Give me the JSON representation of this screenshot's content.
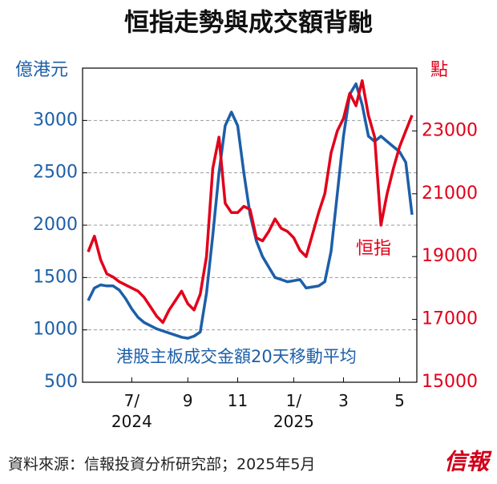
{
  "chart_data": {
    "type": "line",
    "title": "恒指走勢與成交額背馳",
    "y_label": "億港元",
    "y2_label": "點",
    "source": "資料來源：信報投資分析研究部；2025年5月",
    "logo": "信報",
    "categories": [
      null,
      null,
      null,
      null,
      null,
      null,
      null,
      "7/\n2024",
      null,
      null,
      null,
      null,
      null,
      null,
      null,
      null,
      "9",
      null,
      null,
      null,
      null,
      null,
      null,
      null,
      "11",
      null,
      null,
      null,
      null,
      null,
      null,
      null,
      null,
      "1/\n2025",
      null,
      null,
      null,
      null,
      null,
      null,
      null,
      "3",
      null,
      null,
      null,
      null,
      null,
      null,
      null,
      null,
      "5",
      null,
      null
    ],
    "series": [
      {
        "name": "港股主板成交金額20天移動平均",
        "color": "#1d5fa8",
        "values": [
          1280,
          1400,
          1430,
          1420,
          1420,
          1380,
          1300,
          1200,
          1120,
          1070,
          1040,
          1010,
          990,
          970,
          950,
          930,
          920,
          940,
          980,
          1350,
          1900,
          2500,
          2950,
          3080,
          2950,
          2500,
          2100,
          1850,
          1700,
          1600,
          1500,
          1480,
          1460,
          1470,
          1480,
          1400,
          1410,
          1420,
          1460,
          1750,
          2300,
          2850,
          3250,
          3350,
          3150,
          2850,
          2800,
          2850,
          2800,
          2750,
          2700,
          2600,
          2100
        ]
      },
      {
        "name": "恒指",
        "color": "#e2001a",
        "axis": "y2",
        "values": [
          19150,
          19650,
          18900,
          18450,
          18350,
          18200,
          18100,
          18000,
          17900,
          17700,
          17400,
          17100,
          16900,
          17300,
          17600,
          17900,
          17500,
          17300,
          17800,
          19000,
          21800,
          22800,
          20700,
          20400,
          20400,
          20600,
          20500,
          19600,
          19500,
          19800,
          20200,
          19900,
          19800,
          19600,
          19200,
          19000,
          19700,
          20400,
          21000,
          22300,
          23000,
          23400,
          24200,
          23800,
          24600,
          23500,
          22800,
          20000,
          21000,
          21800,
          22500,
          23000,
          23500
        ]
      }
    ],
    "ylim": [
      500,
      3500
    ],
    "yticks": [
      500,
      1000,
      1500,
      2000,
      2500,
      3000
    ],
    "y2lim": [
      15000,
      25000
    ],
    "y2ticks": [
      15000,
      17000,
      19000,
      21000,
      23000
    ],
    "grid": true
  }
}
